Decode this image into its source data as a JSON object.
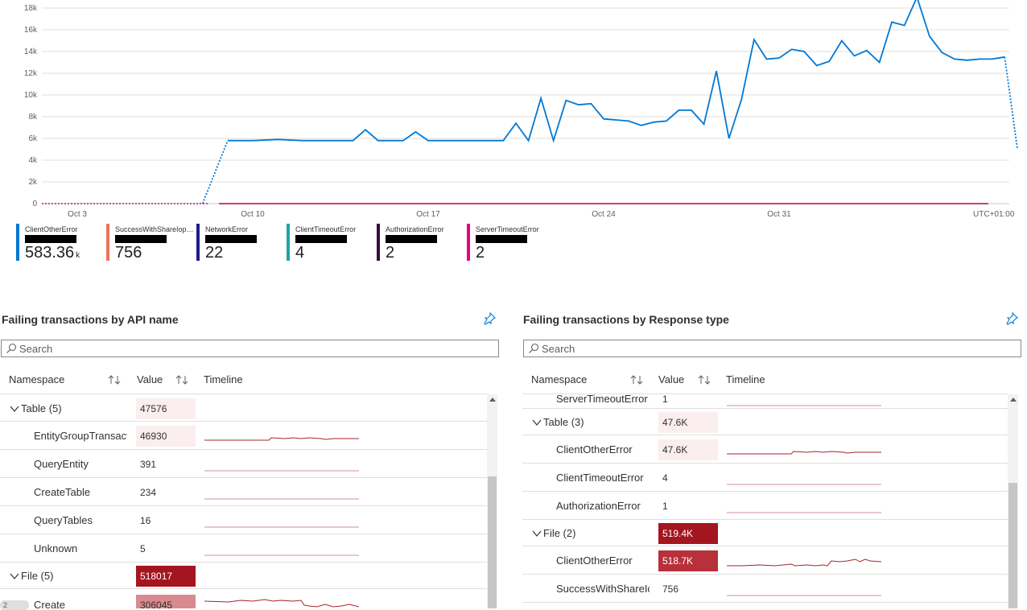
{
  "chart": {
    "y_tick_labels": [
      "0",
      "2k",
      "4k",
      "6k",
      "8k",
      "10k",
      "12k",
      "14k",
      "16k",
      "18k"
    ],
    "x_tick_labels": [
      "Oct 3",
      "Oct 10",
      "Oct 17",
      "Oct 24",
      "Oct 31"
    ],
    "timezone_label": "UTC+01:00"
  },
  "chart_data": {
    "type": "line",
    "ylim": [
      0,
      18000
    ],
    "x_categories": [
      "Oct 3",
      "Oct 10",
      "Oct 17",
      "Oct 24",
      "Oct 31"
    ],
    "series": [
      {
        "name": "ClientOtherError",
        "color": "#0078d4",
        "points": [
          [
            "Oct 3",
            0
          ],
          [
            "Oct 7",
            0
          ],
          [
            "Oct 8",
            0
          ],
          [
            "Oct 9",
            5800
          ],
          [
            "Oct 10",
            5800
          ],
          [
            "Oct 11",
            5900
          ],
          [
            "Oct 12",
            5800
          ],
          [
            "Oct 13",
            5800
          ],
          [
            "Oct 14",
            5800
          ],
          [
            "Oct 14.5",
            6800
          ],
          [
            "Oct 15",
            5800
          ],
          [
            "Oct 16",
            5800
          ],
          [
            "Oct 16.5",
            6600
          ],
          [
            "Oct 17",
            5800
          ],
          [
            "Oct 18",
            5800
          ],
          [
            "Oct 19",
            5800
          ],
          [
            "Oct 20",
            5800
          ],
          [
            "Oct 20.5",
            7400
          ],
          [
            "Oct 21",
            5800
          ],
          [
            "Oct 21.5",
            9700
          ],
          [
            "Oct 22",
            5800
          ],
          [
            "Oct 22.5",
            9500
          ],
          [
            "Oct 23",
            9100
          ],
          [
            "Oct 23.5",
            9200
          ],
          [
            "Oct 24",
            7800
          ],
          [
            "Oct 25",
            7600
          ],
          [
            "Oct 25.5",
            7200
          ],
          [
            "Oct 26",
            7500
          ],
          [
            "Oct 26.5",
            7600
          ],
          [
            "Oct 27",
            8600
          ],
          [
            "Oct 27.5",
            8600
          ],
          [
            "Oct 28",
            7300
          ],
          [
            "Oct 28.5",
            12200
          ],
          [
            "Oct 29",
            6000
          ],
          [
            "Oct 29.5",
            9600
          ],
          [
            "Oct 30",
            15100
          ],
          [
            "Oct 30.5",
            13300
          ],
          [
            "Oct 31",
            13400
          ],
          [
            "Oct 31.5",
            14200
          ],
          [
            "Nov 1",
            14000
          ],
          [
            "Nov 1.5",
            12700
          ],
          [
            "Nov 2",
            13100
          ],
          [
            "Nov 2.5",
            15000
          ],
          [
            "Nov 3",
            13600
          ],
          [
            "Nov 3.5",
            14100
          ],
          [
            "Nov 4",
            13000
          ],
          [
            "Nov 4.5",
            16700
          ],
          [
            "Nov 5",
            16400
          ],
          [
            "Nov 5.5",
            19000
          ],
          [
            "Nov 6",
            15400
          ],
          [
            "Nov 6.5",
            13900
          ],
          [
            "Nov 7",
            13300
          ],
          [
            "Nov 7.5",
            13200
          ],
          [
            "Nov 8",
            13300
          ],
          [
            "Nov 8.5",
            13300
          ],
          [
            "Nov 9",
            13500
          ],
          [
            "Nov 9.5",
            5100
          ]
        ]
      },
      {
        "name": "SuccessWithShareIops...",
        "color": "#e8745a",
        "values_flat": 50
      },
      {
        "name": "NetworkError",
        "color": "#1b1c8c",
        "values_flat": 0
      },
      {
        "name": "ClientTimeoutError",
        "color": "#20a3a3",
        "values_flat": 0
      },
      {
        "name": "AuthorizationError",
        "color": "#3b0b3b",
        "values_flat": 0
      },
      {
        "name": "ServerTimeoutError",
        "color": "#e3008c",
        "values_flat": 0
      }
    ]
  },
  "legend": [
    {
      "name": "ClientOtherError",
      "value": "583.36",
      "unit": "k",
      "color": "#0078d4"
    },
    {
      "name": "SuccessWithShareIops...",
      "value": "756",
      "unit": "",
      "color": "#e8745a"
    },
    {
      "name": "NetworkError",
      "value": "22",
      "unit": "",
      "color": "#1b1c8c"
    },
    {
      "name": "ClientTimeoutError",
      "value": "4",
      "unit": "",
      "color": "#20a3a3"
    },
    {
      "name": "AuthorizationError",
      "value": "2",
      "unit": "",
      "color": "#3b0b3b"
    },
    {
      "name": "ServerTimeoutError",
      "value": "2",
      "unit": "",
      "color": "#e3008c"
    }
  ],
  "left_panel": {
    "title": "Failing transactions by API name",
    "search_placeholder": "Search",
    "columns": {
      "namespace": "Namespace",
      "value": "Value",
      "timeline": "Timeline"
    },
    "rows": [
      {
        "label": "Table (5)",
        "value": "47576",
        "level": 0,
        "expanded": true,
        "bg": "#fbeeee",
        "fg": "#323130",
        "spark": null
      },
      {
        "label": "EntityGroupTransact",
        "value": "46930",
        "level": 1,
        "bg": "#fbeeee",
        "fg": "#323130",
        "spark": "step"
      },
      {
        "label": "QueryEntity",
        "value": "391",
        "level": 1,
        "bg": "",
        "fg": "#323130",
        "spark": "flat"
      },
      {
        "label": "CreateTable",
        "value": "234",
        "level": 1,
        "bg": "",
        "fg": "#323130",
        "spark": "flat"
      },
      {
        "label": "QueryTables",
        "value": "16",
        "level": 1,
        "bg": "",
        "fg": "#323130",
        "spark": "flat"
      },
      {
        "label": "Unknown",
        "value": "5",
        "level": 1,
        "bg": "",
        "fg": "#323130",
        "spark": "flat"
      },
      {
        "label": "File (5)",
        "value": "518017",
        "level": 0,
        "expanded": true,
        "bg": "#a4161f",
        "fg": "#ffffff",
        "spark": null
      },
      {
        "label": "Create",
        "value": "306045",
        "level": 1,
        "bg": "#d98a8f",
        "fg": "#323130",
        "spark": "create"
      }
    ]
  },
  "right_panel": {
    "title": "Failing transactions by Response type",
    "search_placeholder": "Search",
    "columns": {
      "namespace": "Namespace",
      "value": "Value",
      "timeline": "Timeline"
    },
    "rows": [
      {
        "label": "ServerTimeoutError",
        "value": "1",
        "level": 1,
        "bg": "",
        "fg": "#323130",
        "spark": "flat"
      },
      {
        "label": "Table (3)",
        "value": "47.6K",
        "level": 0,
        "expanded": true,
        "bg": "#fbeeee",
        "fg": "#323130",
        "spark": null
      },
      {
        "label": "ClientOtherError",
        "value": "47.6K",
        "level": 1,
        "bg": "#fbeeee",
        "fg": "#323130",
        "spark": "step"
      },
      {
        "label": "ClientTimeoutError",
        "value": "4",
        "level": 1,
        "bg": "",
        "fg": "#323130",
        "spark": "flat"
      },
      {
        "label": "AuthorizationError",
        "value": "1",
        "level": 1,
        "bg": "",
        "fg": "#323130",
        "spark": "flat"
      },
      {
        "label": "File (2)",
        "value": "519.4K",
        "level": 0,
        "expanded": true,
        "bg": "#a4161f",
        "fg": "#ffffff",
        "spark": null
      },
      {
        "label": "ClientOtherError",
        "value": "518.7K",
        "level": 1,
        "bg": "#b8303a",
        "fg": "#ffffff",
        "spark": "rise"
      },
      {
        "label": "SuccessWithShareIo",
        "value": "756",
        "level": 1,
        "bg": "",
        "fg": "#323130",
        "spark": "flat"
      }
    ]
  }
}
